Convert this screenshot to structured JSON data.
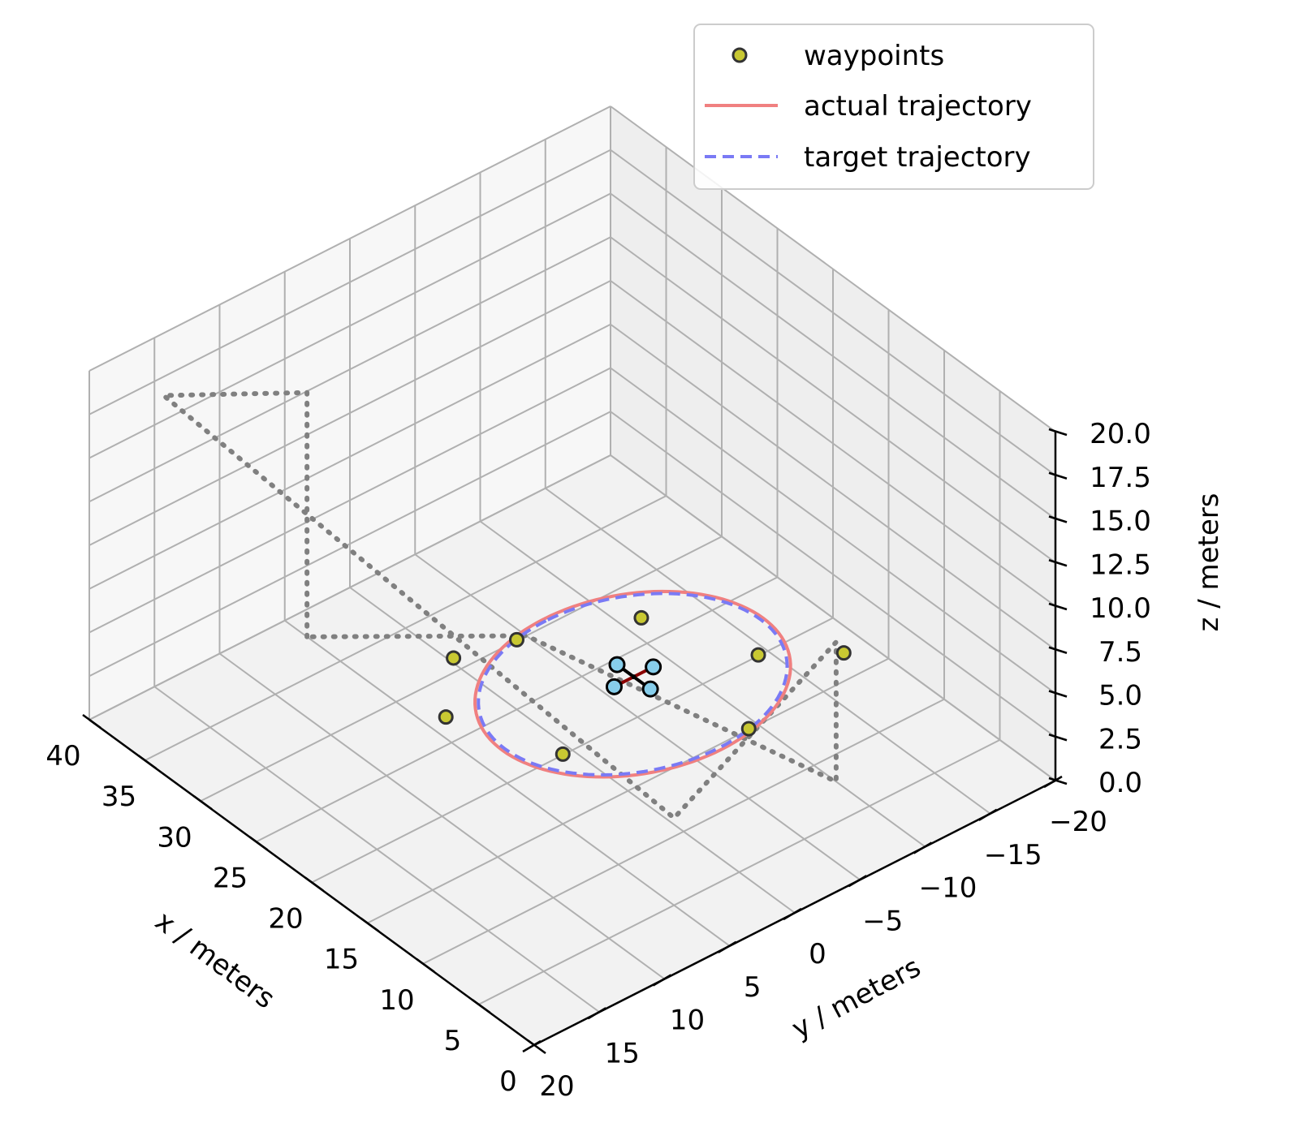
{
  "chart_data": {
    "type": "3d-line",
    "xlabel": "x / meters",
    "ylabel": "y / meters",
    "zlabel": "z / meters",
    "xlim": [
      0,
      40
    ],
    "ylim": [
      20,
      -20
    ],
    "zlim": [
      0,
      20
    ],
    "xticks": [
      0,
      5,
      10,
      15,
      20,
      25,
      30,
      35,
      40
    ],
    "yticks": [
      20,
      15,
      10,
      5,
      0,
      -5,
      -10,
      -15,
      -20
    ],
    "zticks": [
      0,
      2.5,
      5,
      7.5,
      10,
      12.5,
      15,
      17.5,
      20
    ],
    "xtick_labels": [
      "0",
      "5",
      "10",
      "15",
      "20",
      "25",
      "30",
      "35",
      "40"
    ],
    "ytick_labels": [
      "20",
      "15",
      "10",
      "5",
      "0",
      "−5",
      "−10",
      "−15",
      "−20"
    ],
    "ztick_labels": [
      "0.0",
      "2.5",
      "5.0",
      "7.5",
      "10.0",
      "12.5",
      "15.0",
      "17.5",
      "20.0"
    ],
    "grid": true,
    "legend_position": "top-right",
    "legend": [
      {
        "label": "waypoints",
        "kind": "marker",
        "color": "#c8c832",
        "edge": "#333333"
      },
      {
        "label": "actual trajectory",
        "kind": "solid",
        "color": "#f08080"
      },
      {
        "label": "target trajectory",
        "kind": "dashed",
        "color": "#7a7af5"
      }
    ],
    "series": [
      {
        "name": "waypoints",
        "color": "#c8c832",
        "points": [
          [
            25.0,
            0.0,
            4.0
          ],
          [
            22.0,
            -7.0,
            4.0
          ],
          [
            15.0,
            -10.0,
            4.0
          ],
          [
            10.0,
            -5.0,
            4.0
          ],
          [
            15.0,
            5.0,
            4.0
          ],
          [
            22.0,
            8.0,
            4.0
          ],
          [
            26.0,
            4.0,
            4.0
          ],
          [
            12.0,
            -14.0,
            4.0
          ]
        ]
      },
      {
        "name": "actual trajectory",
        "color": "#f08080",
        "ellipse": {
          "center": [
            17.5,
            -2.5,
            4.0
          ],
          "rx": 8.0,
          "ry": 10.0
        }
      },
      {
        "name": "target trajectory",
        "color": "#7a7af5",
        "ellipse": {
          "center": [
            17.5,
            -2.5,
            4.0
          ],
          "rx": 7.8,
          "ry": 9.8
        }
      }
    ],
    "quadrotor": {
      "center": [
        18.0,
        -3.0,
        4.0
      ],
      "rotor_offsets": [
        [
          1.5,
          0
        ],
        [
          -1.5,
          0
        ],
        [
          0,
          1.5
        ],
        [
          0,
          -1.5
        ]
      ],
      "rotor_color": "#87ceeb"
    },
    "dotted_path": {
      "color": "#808080",
      "points": [
        [
          38,
          5,
          0
        ],
        [
          38,
          5,
          14
        ],
        [
          38,
          16,
          18
        ],
        [
          5,
          5,
          5
        ],
        [
          8,
          -10,
          8
        ],
        [
          8,
          -10,
          0
        ],
        [
          30,
          -5,
          0
        ],
        [
          38,
          5,
          0
        ]
      ]
    }
  }
}
